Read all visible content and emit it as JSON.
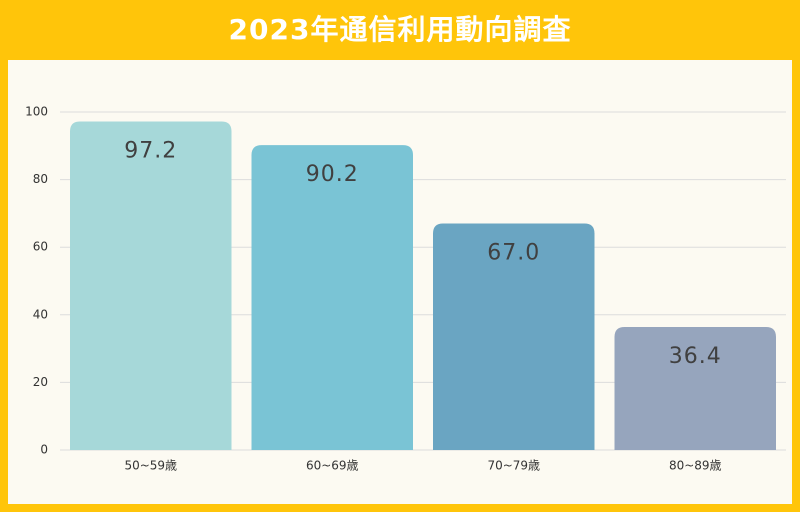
{
  "chart_data": {
    "type": "bar",
    "title": "2023年通信利用動向調査",
    "categories": [
      "50~59歳",
      "60~69歳",
      "70~79歳",
      "80~89歳"
    ],
    "values": [
      97.2,
      90.2,
      67.0,
      36.4
    ],
    "value_labels": [
      "97.2",
      "90.2",
      "67.0",
      "36.4"
    ],
    "colors": [
      "#a6d8d9",
      "#7ac4d5",
      "#6aa5c2",
      "#96a5bd"
    ],
    "ylim": [
      0,
      100
    ],
    "yticks": [
      0,
      20,
      40,
      60,
      80,
      100
    ],
    "grid": true
  }
}
